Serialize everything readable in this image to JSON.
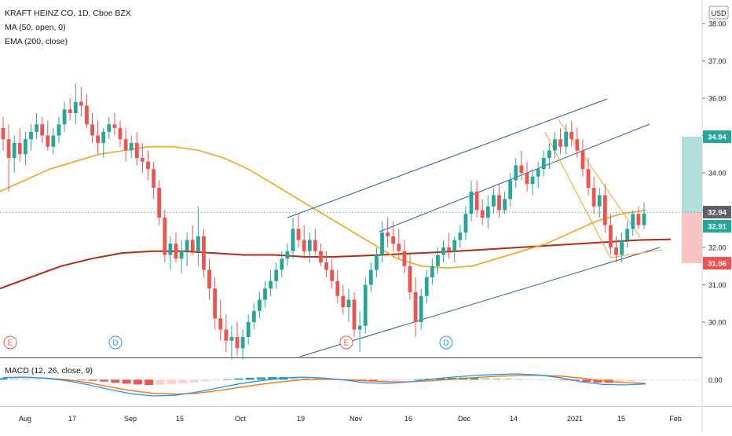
{
  "header": {
    "symbol_line": "KRAFT HEINZ CO, 1D, Cboe BZX",
    "ma_line": "MA (50, open, 0)",
    "ema_line": "EMA (200, close)",
    "macd_line": "MACD (12, 26, close, 9)",
    "currency": "USD"
  },
  "colors": {
    "up": "#26a69a",
    "down": "#ef5350",
    "ma": "#f7a21b",
    "ema": "#b22b12",
    "channel": "#2a5ba8",
    "falling_channel": "#f7a21b",
    "macd": "#2196f3",
    "signal": "#ff6d00",
    "zone_profit": "#b2dfdb",
    "zone_loss": "#f8c4c2"
  },
  "chart_data": {
    "type": "candlestick",
    "title": "KRAFT HEINZ CO, 1D, Cboe BZX",
    "y_axis": {
      "labels": [
        "30.00",
        "31.00",
        "32.00",
        "33.00",
        "34.00",
        "35.00",
        "36.00",
        "37.00",
        "38.00"
      ],
      "range": [
        29.25,
        38.2
      ]
    },
    "x_axis": {
      "labels": [
        "Aug",
        "17",
        "Sep",
        "15",
        "Oct",
        "19",
        "Nov",
        "16",
        "Dec",
        "14",
        "2021",
        "15",
        "Feb"
      ]
    },
    "price_labels": [
      {
        "value": "34.94",
        "kind": "target"
      },
      {
        "value": "32.94",
        "kind": "entry"
      },
      {
        "value": "32.91",
        "kind": "last"
      },
      {
        "value": "31.56",
        "kind": "stop"
      }
    ],
    "earnings_markers": [
      "E",
      "E"
    ],
    "dividend_markers": [
      "D",
      "D"
    ],
    "candles_ohlc": [
      [
        35.2,
        35.5,
        34.6,
        34.9
      ],
      [
        34.9,
        35.3,
        33.5,
        34.4
      ],
      [
        34.4,
        35.0,
        34.0,
        34.8
      ],
      [
        34.8,
        35.2,
        34.3,
        34.5
      ],
      [
        34.5,
        35.1,
        34.2,
        34.9
      ],
      [
        34.9,
        35.3,
        34.6,
        35.1
      ],
      [
        35.1,
        35.6,
        34.9,
        35.3
      ],
      [
        35.3,
        35.5,
        34.8,
        35.0
      ],
      [
        35.0,
        35.4,
        34.6,
        34.7
      ],
      [
        34.7,
        35.2,
        34.5,
        35.0
      ],
      [
        35.0,
        35.5,
        34.8,
        35.3
      ],
      [
        35.3,
        35.9,
        35.1,
        35.7
      ],
      [
        35.7,
        36.0,
        35.4,
        35.6
      ],
      [
        35.6,
        36.4,
        35.3,
        35.9
      ],
      [
        35.9,
        36.3,
        35.5,
        35.8
      ],
      [
        35.8,
        36.1,
        35.2,
        35.3
      ],
      [
        35.3,
        35.6,
        34.8,
        35.0
      ],
      [
        35.0,
        35.4,
        34.5,
        34.8
      ],
      [
        34.8,
        35.2,
        34.4,
        35.1
      ],
      [
        35.1,
        35.5,
        34.9,
        35.3
      ],
      [
        35.3,
        35.6,
        35.0,
        35.2
      ],
      [
        35.2,
        35.4,
        34.7,
        34.9
      ],
      [
        34.9,
        35.2,
        34.3,
        34.6
      ],
      [
        34.6,
        35.0,
        34.4,
        34.8
      ],
      [
        34.8,
        35.1,
        34.2,
        34.4
      ],
      [
        34.4,
        34.8,
        34.0,
        34.3
      ],
      [
        34.3,
        34.6,
        33.8,
        34.1
      ],
      [
        34.1,
        34.3,
        33.3,
        33.6
      ],
      [
        33.6,
        33.8,
        32.6,
        32.8
      ],
      [
        32.8,
        33.0,
        31.6,
        31.8
      ],
      [
        31.8,
        32.3,
        31.4,
        32.1
      ],
      [
        32.1,
        32.4,
        31.6,
        31.7
      ],
      [
        31.7,
        32.2,
        31.3,
        31.9
      ],
      [
        31.9,
        32.4,
        31.5,
        32.2
      ],
      [
        32.2,
        32.6,
        31.8,
        31.9
      ],
      [
        31.9,
        33.1,
        31.5,
        32.3
      ],
      [
        32.3,
        32.5,
        31.2,
        31.4
      ],
      [
        31.4,
        31.7,
        30.6,
        30.9
      ],
      [
        30.9,
        31.2,
        29.8,
        30.1
      ],
      [
        30.1,
        30.6,
        29.5,
        29.8
      ],
      [
        29.8,
        30.2,
        29.2,
        29.5
      ],
      [
        29.5,
        29.9,
        29.0,
        29.6
      ],
      [
        29.6,
        30.0,
        29.1,
        29.3
      ],
      [
        29.3,
        29.8,
        29.0,
        29.6
      ],
      [
        29.6,
        30.2,
        29.4,
        30.0
      ],
      [
        30.0,
        30.5,
        29.8,
        30.3
      ],
      [
        30.3,
        30.8,
        30.1,
        30.6
      ],
      [
        30.6,
        31.1,
        30.4,
        30.9
      ],
      [
        30.9,
        31.4,
        30.7,
        31.1
      ],
      [
        31.1,
        31.6,
        30.9,
        31.4
      ],
      [
        31.4,
        31.9,
        31.2,
        31.7
      ],
      [
        31.7,
        32.1,
        31.5,
        31.9
      ],
      [
        31.9,
        32.8,
        31.7,
        32.5
      ],
      [
        32.5,
        32.9,
        32.0,
        32.2
      ],
      [
        32.2,
        32.6,
        31.7,
        31.9
      ],
      [
        31.9,
        32.4,
        31.6,
        32.2
      ],
      [
        32.2,
        32.5,
        31.8,
        31.9
      ],
      [
        31.9,
        32.1,
        31.5,
        31.6
      ],
      [
        31.6,
        31.9,
        31.2,
        31.4
      ],
      [
        31.4,
        31.7,
        30.9,
        31.1
      ],
      [
        31.1,
        31.4,
        30.5,
        30.7
      ],
      [
        30.7,
        31.0,
        30.2,
        30.4
      ],
      [
        30.4,
        30.9,
        30.0,
        30.6
      ],
      [
        30.6,
        30.8,
        29.6,
        29.8
      ],
      [
        29.8,
        30.3,
        29.2,
        29.9
      ],
      [
        29.9,
        31.2,
        29.7,
        31.0
      ],
      [
        31.0,
        31.6,
        30.8,
        31.4
      ],
      [
        31.4,
        32.0,
        31.2,
        31.8
      ],
      [
        31.8,
        32.7,
        31.6,
        32.4
      ],
      [
        32.4,
        32.8,
        32.0,
        32.3
      ],
      [
        32.3,
        32.7,
        31.9,
        32.1
      ],
      [
        32.1,
        32.5,
        31.7,
        31.9
      ],
      [
        31.9,
        32.2,
        31.3,
        31.5
      ],
      [
        31.5,
        31.8,
        30.6,
        30.8
      ],
      [
        30.8,
        31.2,
        29.6,
        30.0
      ],
      [
        30.0,
        30.9,
        29.8,
        30.7
      ],
      [
        30.7,
        31.4,
        30.5,
        31.2
      ],
      [
        31.2,
        31.7,
        31.0,
        31.5
      ],
      [
        31.5,
        32.0,
        31.3,
        31.8
      ],
      [
        31.8,
        32.2,
        31.6,
        32.0
      ],
      [
        32.0,
        32.4,
        31.7,
        31.9
      ],
      [
        31.9,
        32.3,
        31.6,
        32.2
      ],
      [
        32.2,
        32.6,
        32.0,
        32.4
      ],
      [
        32.4,
        33.1,
        32.2,
        32.9
      ],
      [
        32.9,
        33.8,
        32.7,
        33.5
      ],
      [
        33.5,
        33.8,
        32.8,
        33.0
      ],
      [
        33.0,
        33.3,
        32.6,
        32.8
      ],
      [
        32.8,
        33.4,
        32.5,
        33.1
      ],
      [
        33.1,
        33.6,
        32.9,
        33.4
      ],
      [
        33.4,
        33.7,
        32.8,
        33.0
      ],
      [
        33.0,
        33.5,
        32.9,
        33.3
      ],
      [
        33.3,
        34.0,
        33.1,
        33.8
      ],
      [
        33.8,
        34.4,
        33.6,
        34.2
      ],
      [
        34.2,
        34.6,
        33.8,
        34.0
      ],
      [
        34.0,
        34.3,
        33.5,
        33.7
      ],
      [
        33.7,
        34.1,
        33.4,
        33.9
      ],
      [
        33.9,
        34.3,
        33.6,
        34.1
      ],
      [
        34.1,
        34.6,
        33.9,
        34.4
      ],
      [
        34.4,
        34.8,
        34.1,
        34.6
      ],
      [
        34.6,
        35.1,
        34.4,
        34.9
      ],
      [
        34.9,
        35.2,
        34.5,
        34.7
      ],
      [
        34.7,
        35.3,
        34.5,
        35.1
      ],
      [
        35.1,
        35.4,
        34.7,
        34.9
      ],
      [
        34.9,
        35.2,
        34.4,
        34.6
      ],
      [
        34.6,
        34.9,
        33.9,
        34.1
      ],
      [
        34.1,
        34.4,
        33.4,
        33.6
      ],
      [
        33.6,
        33.9,
        32.9,
        33.1
      ],
      [
        33.1,
        33.6,
        32.8,
        33.4
      ],
      [
        33.4,
        33.7,
        32.4,
        32.6
      ],
      [
        32.6,
        32.9,
        31.8,
        32.0
      ],
      [
        32.0,
        32.3,
        31.6,
        31.8
      ],
      [
        31.8,
        32.4,
        31.6,
        32.2
      ],
      [
        32.2,
        32.7,
        32.0,
        32.5
      ],
      [
        32.5,
        33.0,
        32.3,
        32.9
      ],
      [
        32.9,
        33.1,
        32.5,
        32.6
      ],
      [
        32.6,
        33.2,
        32.5,
        32.91
      ]
    ],
    "ma_values": [
      33.5,
      33.8,
      34.1,
      34.3,
      34.5,
      34.6,
      34.7,
      34.7,
      34.6,
      34.4,
      34.1,
      33.7,
      33.3,
      32.9,
      32.5,
      32.1,
      31.7,
      31.5,
      31.45,
      31.5,
      31.7,
      31.9,
      32.1,
      32.4,
      32.7,
      32.9,
      33.0
    ],
    "ema_values": [
      30.9,
      31.2,
      31.5,
      31.7,
      31.85,
      31.9,
      31.9,
      31.85,
      31.8,
      31.8,
      31.75,
      31.75,
      31.78,
      31.82,
      31.86,
      31.9,
      31.95,
      32.0,
      32.05,
      32.1,
      32.15,
      32.2,
      32.22
    ],
    "macd": {
      "labels": [
        "0.00"
      ],
      "range": [
        -2.0,
        1.0
      ],
      "histogram": [
        0.15,
        0.12,
        0.1,
        0.08,
        0.05,
        0.02,
        0.0,
        -0.05,
        -0.1,
        -0.18,
        -0.28,
        -0.38,
        -0.45,
        -0.5,
        -0.48,
        -0.42,
        -0.35,
        -0.25,
        -0.15,
        -0.05,
        0.05,
        0.12,
        0.18,
        0.22,
        0.25,
        0.26,
        0.24,
        0.2,
        0.15,
        0.08,
        0.02,
        -0.05,
        -0.12,
        -0.18,
        -0.16,
        -0.1,
        -0.02,
        0.05,
        0.1,
        0.14,
        0.18,
        0.2,
        0.2,
        0.18,
        0.15,
        0.12,
        0.08,
        0.05,
        0.02,
        0.0,
        -0.05,
        -0.12,
        -0.2,
        -0.28,
        -0.3,
        -0.26,
        -0.18,
        -0.08
      ],
      "macd_line": [
        0.2,
        0.25,
        0.15,
        -0.1,
        -0.5,
        -0.95,
        -1.35,
        -1.55,
        -1.5,
        -1.2,
        -0.8,
        -0.4,
        -0.1,
        0.15,
        0.25,
        0.15,
        -0.05,
        -0.3,
        -0.35,
        -0.2,
        0.05,
        0.25,
        0.4,
        0.5,
        0.55,
        0.45,
        0.2,
        -0.2,
        -0.45,
        -0.5,
        -0.4
      ],
      "signal_line": [
        0.2,
        0.22,
        0.15,
        0.0,
        -0.3,
        -0.7,
        -1.05,
        -1.3,
        -1.38,
        -1.3,
        -1.05,
        -0.75,
        -0.45,
        -0.2,
        0.0,
        0.05,
        0.0,
        -0.1,
        -0.2,
        -0.2,
        -0.1,
        0.05,
        0.2,
        0.32,
        0.4,
        0.42,
        0.35,
        0.15,
        -0.1,
        -0.28,
        -0.35
      ]
    }
  }
}
